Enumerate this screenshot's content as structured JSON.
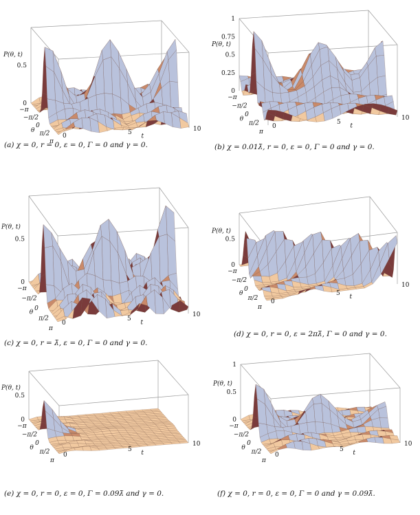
{
  "figure": {
    "panels": [
      {
        "id": "a",
        "caption": "(a) χ = 0, r = 0, ε = 0, Γ = 0 and γ = 0.",
        "z_label": "P(θ, t)",
        "z_ticks": [
          "0.5",
          "0"
        ],
        "theta_ticks": [
          "−π",
          "−π/2",
          "0",
          "π/2",
          "π"
        ],
        "theta_label": "θ",
        "t_ticks": [
          "0",
          "5",
          "10"
        ],
        "t_label": "t",
        "peak": 0.95,
        "ripple": 0.55,
        "damping": 0.0,
        "style": "classical"
      },
      {
        "id": "b",
        "caption": "(b) χ = 0.01λ̄, r = 0, ε = 0, Γ = 0 and γ = 0.",
        "z_label": "P(θ, t)",
        "z_ticks": [
          "1",
          "0.75",
          "0.5",
          "0.25",
          "0"
        ],
        "theta_ticks": [
          "−π",
          "−π/2",
          "0",
          "π/2",
          "π"
        ],
        "theta_label": "θ",
        "t_ticks": [
          "0",
          "5",
          "10"
        ],
        "t_label": "t",
        "peak": 0.85,
        "ripple": 0.6,
        "damping": 0.0,
        "style": "shifted"
      },
      {
        "id": "c",
        "caption": "(c) χ = 0, r = λ̄, ε = 0, Γ = 0 and γ = 0.",
        "z_label": "P(θ, t)",
        "z_ticks": [
          "0.5",
          "0"
        ],
        "theta_ticks": [
          "−π",
          "−π/2",
          "0",
          "π/2",
          "π"
        ],
        "theta_label": "θ",
        "t_ticks": [
          "0",
          "5",
          "10"
        ],
        "t_label": "t",
        "peak": 0.9,
        "ripple": 0.65,
        "damping": 0.0,
        "style": "squeezed"
      },
      {
        "id": "d",
        "caption": "(d) χ = 0, r = 0, ε = 2πλ̄, Γ = 0 and γ = 0.",
        "z_label": "P(θ, t)",
        "z_ticks": [
          "0.5",
          "0"
        ],
        "theta_ticks": [
          "−π",
          "−π/2",
          "0",
          "π/2",
          "π"
        ],
        "theta_label": "θ",
        "t_ticks": [
          "0",
          "5",
          "10"
        ],
        "t_label": "t",
        "peak": 0.8,
        "ripple": 0.5,
        "damping": 0.0,
        "style": "diagonal"
      },
      {
        "id": "e",
        "caption": "(e) χ = 0, r = 0, ε = 0, Γ = 0.09λ̄ and γ = 0.",
        "z_label": "P(θ, t)",
        "z_ticks": [
          "0.5",
          "0"
        ],
        "theta_ticks": [
          "−π",
          "−π/2",
          "0",
          "π/2",
          "π"
        ],
        "theta_label": "θ",
        "t_ticks": [
          "0",
          "5",
          "10"
        ],
        "t_label": "t",
        "peak": 0.75,
        "ripple": 0.4,
        "damping": 0.45,
        "style": "classical"
      },
      {
        "id": "f",
        "caption": "(f) χ = 0, r = 0, ε = 0, Γ = 0 and γ = 0.09λ̄.",
        "z_label": "P(θ, t)",
        "z_ticks": [
          "1",
          "0.5",
          "0"
        ],
        "theta_ticks": [
          "−π",
          "−π/2",
          "0",
          "π/2",
          "π"
        ],
        "theta_label": "θ",
        "t_ticks": [
          "0",
          "5",
          "10"
        ],
        "t_label": "t",
        "peak": 0.95,
        "ripple": 0.55,
        "damping": 0.08,
        "style": "classical"
      }
    ],
    "colors": {
      "surface_light": "#f1c9a0",
      "surface_mid": "#c98a6a",
      "surface_dark": "#7a3b3b",
      "surface_blue": "#b9c2dc",
      "mesh": "#6e4a3a",
      "box": "#9a9a9a"
    }
  }
}
